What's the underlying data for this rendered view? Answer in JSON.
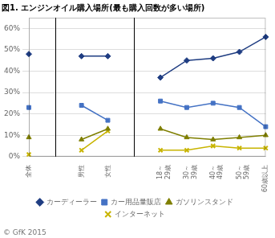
{
  "chart_data": {
    "type": "line",
    "title": "図1. エンジンオイル購入場所(最も購入回数が多い場所)",
    "categories": [
      "全体",
      null,
      "男性",
      "女性",
      null,
      "18～\n29歳",
      "30～\n39歳",
      "40～\n49歳",
      "50～\n59歳",
      "60歳以上"
    ],
    "series": [
      {
        "name": "カーディーラー",
        "color": "#1f3d82",
        "marker": "diamond",
        "values": [
          0.48,
          null,
          0.47,
          0.47,
          null,
          0.37,
          0.45,
          0.46,
          0.49,
          0.56
        ]
      },
      {
        "name": "カー用品量販店",
        "color": "#4472c4",
        "marker": "square",
        "values": [
          0.23,
          null,
          0.24,
          0.17,
          null,
          0.26,
          0.23,
          0.25,
          0.23,
          0.14
        ]
      },
      {
        "name": "ガソリンスタンド",
        "color": "#7f7f00",
        "marker": "triangle",
        "values": [
          0.09,
          null,
          0.08,
          0.13,
          null,
          0.13,
          0.09,
          0.08,
          0.09,
          0.1
        ]
      },
      {
        "name": "インターネット",
        "color": "#c8b400",
        "marker": "x",
        "values": [
          0.01,
          null,
          0.03,
          0.12,
          null,
          0.03,
          0.03,
          0.05,
          0.04,
          0.04
        ]
      }
    ],
    "ylim": [
      0.0,
      0.65
    ],
    "yticks": [
      {
        "value": 0.0,
        "label": "0%"
      },
      {
        "value": 0.1,
        "label": "10%"
      },
      {
        "value": 0.2,
        "label": "20%"
      },
      {
        "value": 0.3,
        "label": "30%"
      },
      {
        "value": 0.4,
        "label": "40%"
      },
      {
        "value": 0.5,
        "label": "50%"
      },
      {
        "value": 0.6,
        "label": "60%"
      }
    ],
    "grid": true,
    "legend": "bottom",
    "annotations": [
      "© GfK 2015"
    ]
  }
}
